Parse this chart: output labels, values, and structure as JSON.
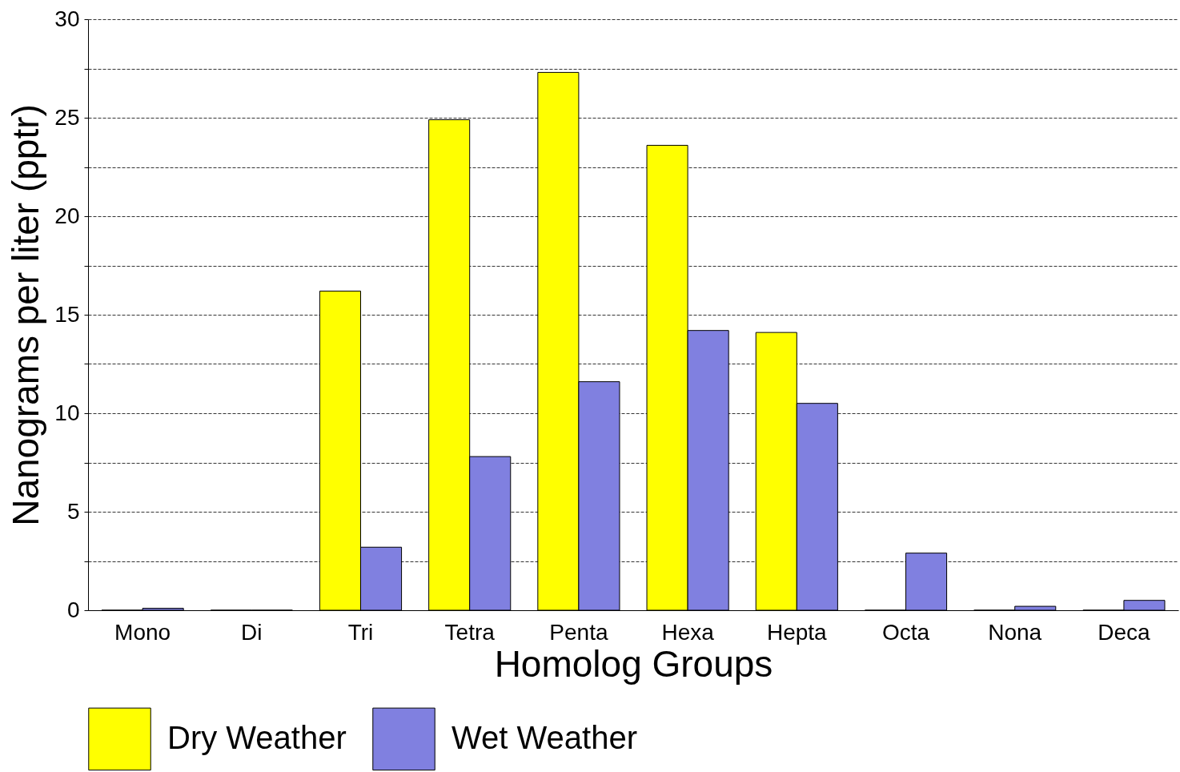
{
  "chart_data": {
    "type": "bar",
    "xlabel": "Homolog Groups",
    "ylabel": "Nanograms per liter (pptr)",
    "categories": [
      "Mono",
      "Di",
      "Tri",
      "Tetra",
      "Penta",
      "Hexa",
      "Hepta",
      "Octa",
      "Nona",
      "Deca"
    ],
    "series": [
      {
        "name": "Dry Weather",
        "color": "#ffff00",
        "values": [
          0,
          0,
          16.2,
          24.9,
          27.3,
          23.6,
          14.1,
          0,
          0,
          0
        ]
      },
      {
        "name": "Wet Weather",
        "color": "#8080e0",
        "values": [
          0.1,
          0,
          3.2,
          7.8,
          11.6,
          14.2,
          10.5,
          2.9,
          0.2,
          0.5
        ]
      }
    ],
    "ylim": [
      0,
      30
    ],
    "yticks": [
      0,
      {
        "value": 2.5,
        "label": null
      },
      5,
      {
        "value": 7.5,
        "label": null
      },
      10,
      {
        "value": 12.5,
        "label": null
      },
      15,
      {
        "value": 17.5,
        "label": null
      },
      20,
      {
        "value": 22.5,
        "label": null
      },
      25,
      {
        "value": 27.5,
        "label": null
      },
      30
    ],
    "grid": "y",
    "legend": "bottom"
  }
}
